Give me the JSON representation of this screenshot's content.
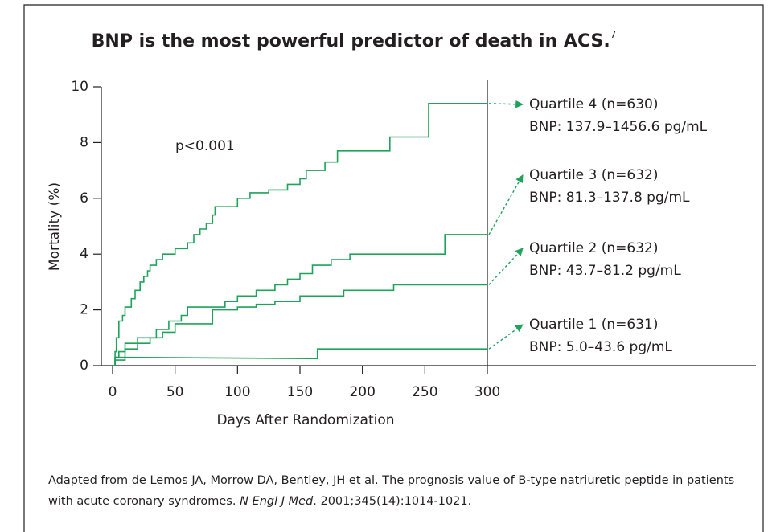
{
  "chart_data": {
    "type": "line",
    "title": "BNP is the most powerful predictor of death in ACS.",
    "title_ref": "7",
    "x_label": "Days After Randomization",
    "y_label": "Mortality (%)",
    "annotation": "p<0.001",
    "xlim": [
      0,
      300
    ],
    "xticks": [
      0,
      50,
      100,
      150,
      200,
      250,
      300
    ],
    "ylim": [
      0,
      10
    ],
    "yticks": [
      0,
      2,
      4,
      6,
      8,
      10
    ],
    "color": "#1fa35a",
    "series": [
      {
        "name": "Quartile 4 (n=630)",
        "detail": "BNP: 137.9–1456.6 pg/mL",
        "x": [
          0,
          2,
          2,
          3,
          3,
          5,
          5,
          8,
          8,
          10,
          10,
          15,
          15,
          18,
          18,
          22,
          22,
          25,
          25,
          28,
          28,
          30,
          30,
          35,
          35,
          40,
          40,
          50,
          50,
          60,
          60,
          65,
          65,
          70,
          70,
          75,
          75,
          80,
          80,
          82,
          82,
          100,
          100,
          110,
          110,
          125,
          125,
          140,
          140,
          150,
          150,
          155,
          155,
          170,
          170,
          180,
          180,
          222,
          222,
          253,
          253,
          300
        ],
        "values": [
          0,
          0,
          0.5,
          0.5,
          1.0,
          1.0,
          1.6,
          1.6,
          1.8,
          1.8,
          2.1,
          2.1,
          2.4,
          2.4,
          2.7,
          2.7,
          3.0,
          3.0,
          3.2,
          3.2,
          3.4,
          3.4,
          3.6,
          3.6,
          3.8,
          3.8,
          4.0,
          4.0,
          4.2,
          4.2,
          4.4,
          4.4,
          4.7,
          4.7,
          4.9,
          4.9,
          5.1,
          5.1,
          5.4,
          5.4,
          5.7,
          5.7,
          6.0,
          6.0,
          6.2,
          6.2,
          6.3,
          6.3,
          6.5,
          6.5,
          6.7,
          6.7,
          7.0,
          7.0,
          7.3,
          7.3,
          7.7,
          7.7,
          8.2,
          8.2,
          9.4,
          9.4
        ]
      },
      {
        "name": "Quartile 3 (n=632)",
        "detail": "BNP: 81.3–137.8 pg/mL",
        "x": [
          0,
          2,
          2,
          5,
          5,
          10,
          10,
          20,
          20,
          35,
          35,
          45,
          45,
          55,
          55,
          60,
          60,
          90,
          90,
          100,
          100,
          115,
          115,
          130,
          130,
          140,
          140,
          150,
          150,
          160,
          160,
          175,
          175,
          190,
          190,
          266,
          266,
          300
        ],
        "values": [
          0,
          0,
          0.3,
          0.3,
          0.5,
          0.5,
          0.8,
          0.8,
          1.0,
          1.0,
          1.3,
          1.3,
          1.6,
          1.6,
          1.8,
          1.8,
          2.1,
          2.1,
          2.3,
          2.3,
          2.5,
          2.5,
          2.7,
          2.7,
          2.9,
          2.9,
          3.1,
          3.1,
          3.3,
          3.3,
          3.6,
          3.6,
          3.8,
          3.8,
          4.0,
          4.0,
          4.7,
          4.7
        ]
      },
      {
        "name": "Quartile 2 (n=632)",
        "detail": "BNP: 43.7–81.2 pg/mL",
        "x": [
          0,
          2,
          2,
          10,
          10,
          20,
          20,
          30,
          30,
          40,
          40,
          50,
          50,
          80,
          80,
          100,
          100,
          115,
          115,
          130,
          130,
          150,
          150,
          185,
          185,
          225,
          225,
          300
        ],
        "values": [
          0,
          0,
          0.2,
          0.2,
          0.6,
          0.6,
          0.8,
          0.8,
          1.0,
          1.0,
          1.2,
          1.2,
          1.5,
          1.5,
          2.0,
          2.0,
          2.1,
          2.1,
          2.2,
          2.2,
          2.3,
          2.3,
          2.5,
          2.5,
          2.7,
          2.7,
          2.9,
          2.9
        ]
      },
      {
        "name": "Quartile 1 (n=631)",
        "detail": "BNP: 5.0–43.6 pg/mL",
        "x": [
          0,
          2,
          2,
          164,
          164,
          300
        ],
        "values": [
          0,
          0,
          0.3,
          0.25,
          0.6,
          0.6
        ]
      }
    ]
  },
  "source": {
    "text_1": "Adapted from de Lemos JA, Morrow DA, Bentley, JH et al. The prognosis value of B-type natriuretic peptide in patients with acute coronary syndromes.",
    "journal": "N Engl J Med",
    "text_2": ". 2001;345(14):1014-1021."
  }
}
